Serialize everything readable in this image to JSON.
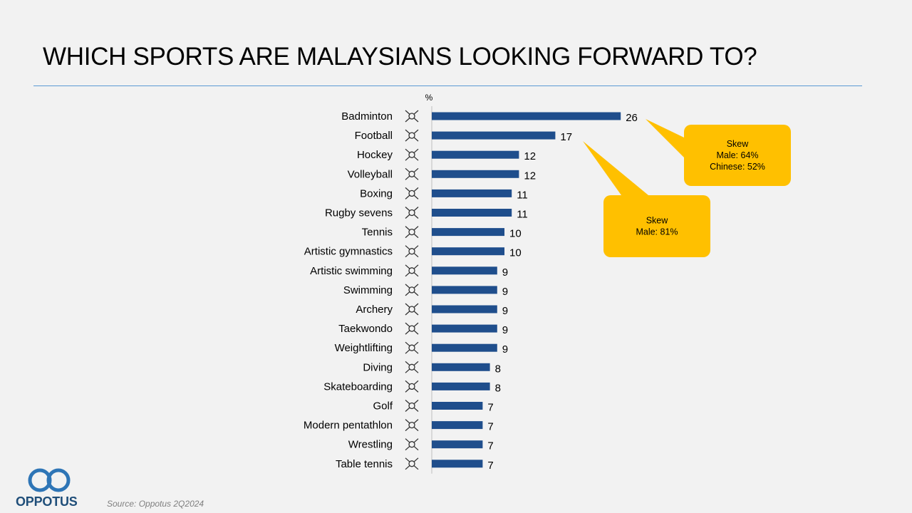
{
  "title": "WHICH SPORTS ARE MALAYSIANS LOOKING FORWARD TO?",
  "source": "Source: Oppotus 2Q2024",
  "logo": {
    "text": "OPPOTUS",
    "color": "#2e75b6",
    "text_color": "#1f4e79"
  },
  "colors": {
    "bar": "#1f4e8c",
    "callout": "#ffc000",
    "rule": "#5b9bd5"
  },
  "chart_data": {
    "type": "bar",
    "orientation": "horizontal",
    "unit_label": "%",
    "categories": [
      "Badminton",
      "Football",
      "Hockey",
      "Volleyball",
      "Boxing",
      "Rugby sevens",
      "Tennis",
      "Artistic gymnastics",
      "Artistic swimming",
      "Swimming",
      "Archery",
      "Taekwondo",
      "Weightlifting",
      "Diving",
      "Skateboarding",
      "Golf",
      "Modern pentathlon",
      "Wrestling",
      "Table tennis"
    ],
    "values": [
      26,
      17,
      12,
      12,
      11,
      11,
      10,
      10,
      9,
      9,
      9,
      9,
      9,
      8,
      8,
      7,
      7,
      7,
      7
    ],
    "xlim": [
      0,
      26
    ],
    "grid": false,
    "legend": false,
    "annotations": [
      {
        "target": "Badminton",
        "lines": [
          "Skew",
          "Male: 64%",
          "Chinese: 52%"
        ]
      },
      {
        "target": "Football",
        "lines": [
          "Skew",
          "Male: 81%"
        ]
      }
    ]
  }
}
